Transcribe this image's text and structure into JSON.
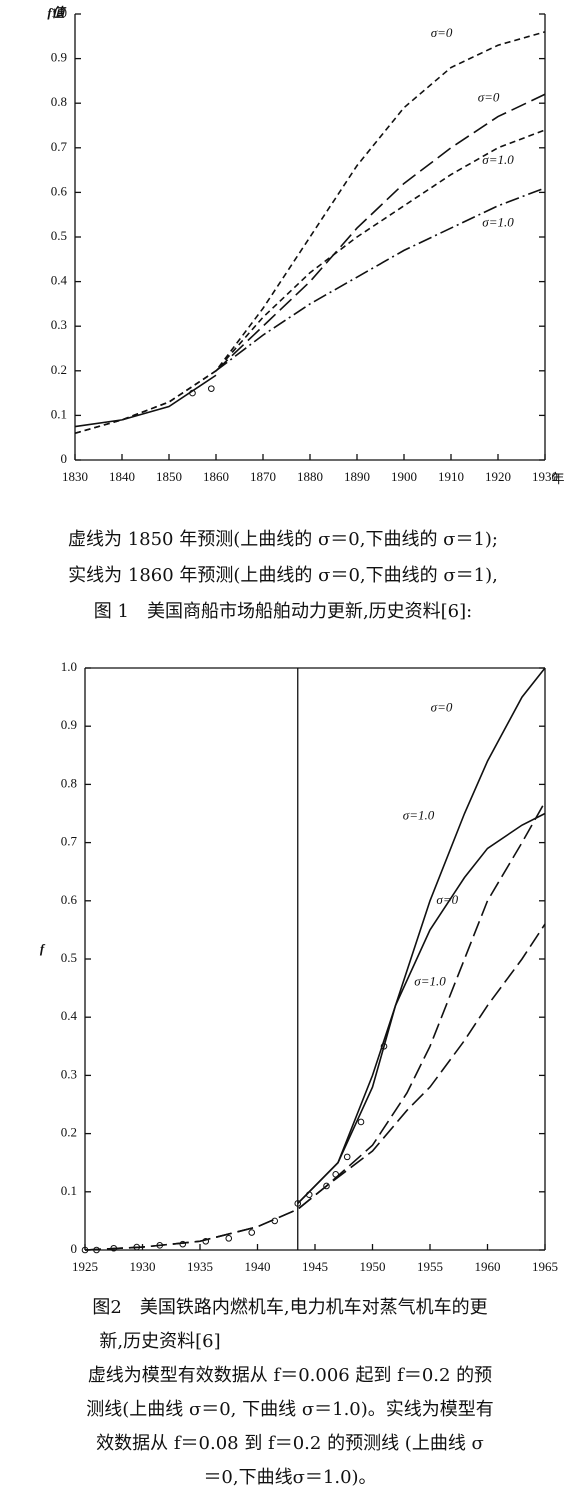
{
  "chart_data": [
    {
      "type": "line",
      "y_label": "f值",
      "x_label": "年",
      "xlim": [
        1830,
        1930
      ],
      "xticks": [
        1830,
        1840,
        1850,
        1860,
        1870,
        1880,
        1890,
        1900,
        1910,
        1920,
        1930
      ],
      "ylim": [
        0,
        1
      ],
      "yticks": [
        0,
        0.1,
        0.2,
        0.3,
        0.4,
        0.5,
        0.6,
        0.7,
        0.8,
        0.9,
        {
          "value": 1,
          "label": "1.0"
        }
      ],
      "series": [
        {
          "name": "σ=0",
          "style": "short-dash",
          "x": [
            1830,
            1840,
            1850,
            1860,
            1870,
            1880,
            1890,
            1900,
            1910,
            1920,
            1930
          ],
          "values": [
            0.06,
            0.09,
            0.13,
            0.2,
            0.34,
            0.5,
            0.66,
            0.79,
            0.88,
            0.93,
            0.96
          ]
        },
        {
          "name": "σ=0",
          "style": "long-dash",
          "x": [
            1860,
            1870,
            1880,
            1890,
            1900,
            1910,
            1920,
            1930
          ],
          "values": [
            0.2,
            0.3,
            0.4,
            0.52,
            0.62,
            0.7,
            0.77,
            0.82
          ]
        },
        {
          "name": "σ=1.0",
          "style": "short-dash",
          "x": [
            1830,
            1840,
            1850,
            1860,
            1870,
            1880,
            1890,
            1900,
            1910,
            1920,
            1930
          ],
          "values": [
            0.06,
            0.09,
            0.13,
            0.2,
            0.32,
            0.42,
            0.5,
            0.57,
            0.64,
            0.7,
            0.74
          ]
        },
        {
          "name": "σ=1.0",
          "style": "dash-dot",
          "x": [
            1860,
            1870,
            1880,
            1890,
            1900,
            1910,
            1920,
            1930
          ],
          "values": [
            0.2,
            0.28,
            0.35,
            0.41,
            0.47,
            0.52,
            0.57,
            0.61
          ]
        },
        {
          "style": "solid",
          "x": [
            1830,
            1840,
            1850,
            1860
          ],
          "values": [
            0.075,
            0.09,
            0.12,
            0.19
          ]
        },
        {
          "style": "points",
          "x": [
            1855,
            1859
          ],
          "values": [
            0.15,
            0.16
          ]
        }
      ]
    },
    {
      "type": "line",
      "y_label": "f",
      "vline": 1943.5,
      "xlim": [
        1925,
        1965
      ],
      "xticks": [
        1925,
        1930,
        1935,
        1940,
        1945,
        1950,
        1955,
        1960,
        1965
      ],
      "ylim": [
        0,
        1
      ],
      "yticks": [
        0,
        0.1,
        0.2,
        0.3,
        0.4,
        0.5,
        0.6,
        0.7,
        0.8,
        0.9,
        {
          "value": 1,
          "label": "1.0"
        }
      ],
      "series": [
        {
          "name": "σ=0",
          "style": "solid",
          "x": [
            1943.5,
            1947,
            1950,
            1952,
            1955,
            1958,
            1960,
            1963,
            1965
          ],
          "values": [
            0.08,
            0.15,
            0.3,
            0.42,
            0.6,
            0.75,
            0.84,
            0.95,
            1.0
          ]
        },
        {
          "name": "σ=1.0",
          "style": "solid",
          "x": [
            1943.5,
            1947,
            1950,
            1952,
            1955,
            1958,
            1960,
            1963,
            1965
          ],
          "values": [
            0.08,
            0.15,
            0.28,
            0.42,
            0.55,
            0.64,
            0.69,
            0.73,
            0.75
          ]
        },
        {
          "name": "σ=0",
          "style": "long-dash",
          "x": [
            1925,
            1930,
            1935,
            1940,
            1943.5,
            1946,
            1950,
            1953,
            1955,
            1958,
            1960,
            1963,
            1965
          ],
          "values": [
            0,
            0.005,
            0.015,
            0.04,
            0.07,
            0.11,
            0.18,
            0.27,
            0.35,
            0.5,
            0.6,
            0.7,
            0.77
          ]
        },
        {
          "name": "σ=1.0",
          "style": "long-dash",
          "x": [
            1925,
            1930,
            1935,
            1940,
            1943.5,
            1946,
            1950,
            1953,
            1955,
            1958,
            1960,
            1963,
            1965
          ],
          "values": [
            0,
            0.005,
            0.015,
            0.04,
            0.07,
            0.11,
            0.17,
            0.24,
            0.28,
            0.36,
            0.42,
            0.5,
            0.56
          ]
        },
        {
          "style": "points",
          "x": [
            1925,
            1926,
            1927.5,
            1929.5,
            1931.5,
            1933.5,
            1935.5,
            1937.5,
            1939.5,
            1941.5,
            1943.5,
            1944.5,
            1946,
            1946.8,
            1947.8,
            1949,
            1951
          ],
          "values": [
            0,
            0,
            0.003,
            0.005,
            0.008,
            0.01,
            0.015,
            0.02,
            0.03,
            0.05,
            0.08,
            0.095,
            0.11,
            0.13,
            0.16,
            0.22,
            0.35
          ]
        }
      ]
    }
  ],
  "figure1_caption": [
    "虚线为 1850 年预测(上曲线的 σ＝0,下曲线的 σ＝1);",
    "实线为 1860 年预测(上曲线的 σ＝0,下曲线的 σ＝1),",
    "图 1　美国商船市场船舶动力更新,历史资料[6]:"
  ],
  "figure2_caption": [
    "图2　美国铁路内燃机车,电力机车对蒸气机车的更",
    "新,历史资料[6]",
    "虚线为模型有效数据从 f＝0.006 起到 f＝0.2 的预",
    "测线(上曲线 σ＝0, 下曲线 σ＝1.0)。实线为模型有",
    "效数据从 f＝0.08 到 f＝0.2 的预测线 (上曲线 σ",
    "＝0,下曲线σ＝1.0)。"
  ]
}
